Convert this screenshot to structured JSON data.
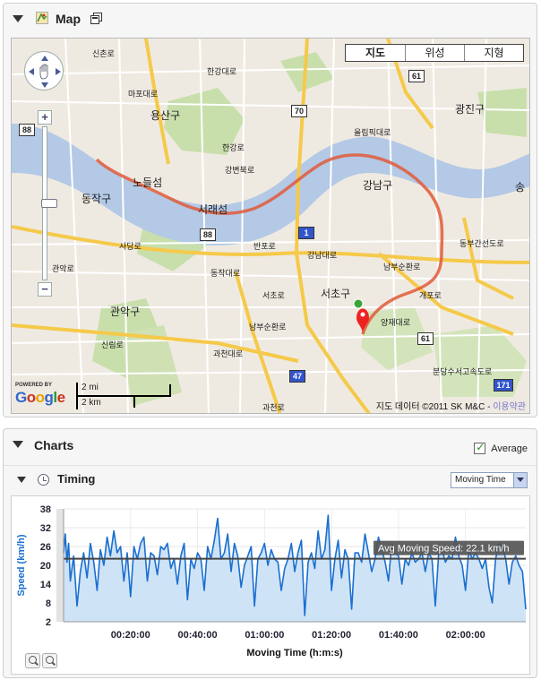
{
  "map_panel": {
    "title": "Map",
    "map_types": [
      "지도",
      "위성",
      "지형"
    ],
    "selected_map_type": "지도",
    "labels": {
      "sinchonro": "신촌로",
      "mapo": "마포대로",
      "yongsan": "용산구",
      "hangang": "한강로",
      "hwangang": "한강대로",
      "nodeulseom": "노들섬",
      "seoraeseom": "서래섬",
      "dongjak": "동작구",
      "gangnam": "강남구",
      "seocho": "서초구",
      "gwanak": "관악구",
      "gwangjin": "광진구",
      "song": "송",
      "nambu": "남부순환로",
      "gangbyeon": "강변북로",
      "dongbu": "동부간선도로",
      "yangjae": "양재대로",
      "olympic": "올림픽대로",
      "seochoro": "서초로",
      "banpo": "반포로",
      "sadang": "사당로",
      "dongjakdaero": "동작대로",
      "gwacheon": "과천대로",
      "gwansan": "관악로",
      "gangsan": "강남대로",
      "gaepo": "개포로",
      "bundang": "분당수서고속도로",
      "sinrim": "신림로",
      "nambu2": "남부순환로",
      "gwacheon2": "과천로"
    },
    "highway_shields": [
      "70",
      "61",
      "88",
      "1",
      "88",
      "47",
      "61",
      "171"
    ],
    "zoom_in": "+",
    "zoom_out": "−",
    "powered_by": "POWERED BY",
    "google": {
      "G": "G",
      "o1": "o",
      "o2": "o",
      "g": "g",
      "l": "l",
      "e": "e"
    },
    "scale_mi": "2 mi",
    "scale_km": "2 km",
    "attribution": "지도 데이터 ©2011 SK M&C - ",
    "terms_link": "이용약관",
    "colors": {
      "route": "#e05a3a",
      "river": "#b3c9e6",
      "road_major": "#f5c94a",
      "park": "#c8dfac",
      "land": "#efeae1"
    }
  },
  "charts_panel": {
    "title": "Charts",
    "average_label": "Average",
    "average_checked": true,
    "section_title": "Timing",
    "dropdown_value": "Moving Time",
    "avg_label": "Avg Moving Speed: 22.1 km/h"
  },
  "chart_data": {
    "type": "area",
    "title": "",
    "xlabel": "Moving Time (h:m:s)",
    "ylabel": "Speed (km/h)",
    "ylim": [
      2,
      38
    ],
    "y_ticks": [
      "2",
      "8",
      "14",
      "20",
      "26",
      "32",
      "38"
    ],
    "x_tick_labels": [
      "00:20:00",
      "00:40:00",
      "01:00:00",
      "01:20:00",
      "01:40:00",
      "02:00:00"
    ],
    "x_tick_minutes": [
      20,
      40,
      60,
      80,
      100,
      120
    ],
    "xlim_minutes": [
      0,
      138
    ],
    "average": 22.1,
    "grid": true,
    "fill_color": "#cfe3f7",
    "line_color": "#1a6fd0",
    "series": [
      {
        "x": [
          0,
          0.5,
          1,
          1.5,
          2,
          3,
          4,
          5,
          6,
          7,
          8,
          9,
          10,
          11,
          12,
          13,
          14,
          15,
          16,
          17,
          18,
          19,
          20,
          21,
          22,
          23,
          24,
          25,
          26,
          27,
          28,
          29,
          30,
          31,
          32,
          33,
          34,
          35,
          36,
          37,
          38,
          39,
          40,
          41,
          42,
          43,
          44,
          45,
          46,
          47,
          48,
          49,
          50,
          51,
          52,
          53,
          54,
          55,
          56,
          57,
          58,
          59,
          60,
          61,
          62,
          63,
          64,
          65,
          66,
          67,
          68,
          69,
          70,
          71,
          72,
          73,
          74,
          75,
          76,
          77,
          78,
          79,
          80,
          81,
          82,
          83,
          84,
          85,
          86,
          87,
          88,
          89,
          90,
          91,
          92,
          93,
          94,
          95,
          96,
          97,
          98,
          99,
          100,
          101,
          102,
          103,
          104,
          105,
          106,
          107,
          108,
          109,
          110,
          111,
          112,
          113,
          114,
          115,
          116,
          117,
          118,
          119,
          120,
          121,
          122,
          123,
          124,
          125,
          126,
          127,
          128,
          129,
          130,
          131,
          132,
          133,
          134,
          135,
          136,
          137,
          138
        ],
        "values": [
          24,
          30,
          21,
          27,
          15,
          23,
          7,
          18,
          24,
          16,
          27,
          21,
          12,
          25,
          20,
          29,
          23,
          31,
          24,
          26,
          15,
          24,
          10,
          26,
          22,
          27,
          29,
          15,
          24,
          23,
          17,
          26,
          25,
          27,
          19,
          22,
          14,
          23,
          27,
          9,
          22,
          19,
          24,
          22,
          12,
          26,
          22,
          28,
          35,
          22,
          24,
          30,
          18,
          27,
          23,
          13,
          20,
          23,
          26,
          7,
          22,
          24,
          27,
          20,
          25,
          22,
          21,
          12,
          19,
          22,
          27,
          18,
          24,
          28,
          4,
          21,
          24,
          19,
          31,
          22,
          25,
          36,
          12,
          22,
          28,
          16,
          25,
          22,
          6,
          24,
          24,
          21,
          30,
          24,
          18,
          22,
          29,
          25,
          21,
          15,
          27,
          24,
          23,
          14,
          22,
          20,
          24,
          21,
          22,
          24,
          18,
          24,
          22,
          7,
          24,
          25,
          21,
          23,
          22,
          29,
          23,
          20,
          12,
          25,
          22,
          24,
          22,
          19,
          22,
          13,
          8,
          22,
          27,
          26,
          22,
          14,
          21,
          23,
          20,
          18,
          6
        ]
      }
    ]
  }
}
